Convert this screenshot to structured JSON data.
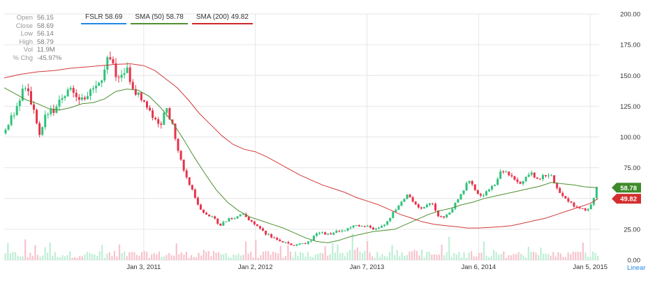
{
  "ohlc_panel": {
    "rows": [
      {
        "label": "Open",
        "value": "56.15"
      },
      {
        "label": "Close",
        "value": "58.69"
      },
      {
        "label": "Low",
        "value": "56.14"
      },
      {
        "label": "High",
        "value": "58.79"
      },
      {
        "label": "Vol",
        "value": "11.9M"
      },
      {
        "label": "% Chg",
        "value": "-45.97%"
      }
    ]
  },
  "legend": [
    {
      "text": "FSLR 58.69",
      "color": "#1e88e5"
    },
    {
      "text": "SMA (50) 58.78",
      "color": "#4e8f2f"
    },
    {
      "text": "SMA (200) 49.82",
      "color": "#cc2828"
    }
  ],
  "badges": {
    "sma50": {
      "text": "58.78",
      "value": 58.78,
      "color": "#3f8a2a"
    },
    "sma200": {
      "text": "49.82",
      "value": 49.82,
      "color": "#d32f2f"
    }
  },
  "scale_label": "Linear",
  "colors": {
    "up": "#2fc27a",
    "down": "#e8324a",
    "sma50": "#4e8f2f",
    "sma200": "#d23a3a",
    "vol_up": "#bfeed5",
    "vol_down": "#f7c3cd",
    "grid": "#e6e6e6",
    "axis_text": "#333333"
  },
  "chart_data": {
    "type": "candlestick",
    "ticker": "FSLR",
    "y_ticks": [
      "0.00",
      "25.00",
      "50.00",
      "75.00",
      "100.00",
      "125.00",
      "150.00",
      "175.00",
      "200.00"
    ],
    "y_tick_values": [
      0,
      25,
      50,
      75,
      100,
      125,
      150,
      175,
      200
    ],
    "ylim": [
      0,
      200
    ],
    "x_ticks": [
      "Jan 3, 2011",
      "Jan 2, 2012",
      "Jan 7, 2013",
      "Jan 6, 2014",
      "Jan 5, 2015"
    ],
    "x_tick_years": [
      2011,
      2012,
      2013,
      2014,
      2015
    ],
    "x_range": [
      2009.75,
      2015.08
    ],
    "close_path": [
      [
        2009.75,
        103
      ],
      [
        2009.85,
        122
      ],
      [
        2009.93,
        140
      ],
      [
        2010.0,
        128
      ],
      [
        2010.07,
        98
      ],
      [
        2010.12,
        118
      ],
      [
        2010.2,
        122
      ],
      [
        2010.28,
        135
      ],
      [
        2010.35,
        140
      ],
      [
        2010.45,
        130
      ],
      [
        2010.55,
        138
      ],
      [
        2010.62,
        148
      ],
      [
        2010.68,
        165
      ],
      [
        2010.72,
        160
      ],
      [
        2010.78,
        145
      ],
      [
        2010.85,
        155
      ],
      [
        2010.92,
        138
      ],
      [
        2011.0,
        128
      ],
      [
        2011.08,
        117
      ],
      [
        2011.15,
        110
      ],
      [
        2011.2,
        125
      ],
      [
        2011.25,
        112
      ],
      [
        2011.3,
        90
      ],
      [
        2011.36,
        72
      ],
      [
        2011.42,
        60
      ],
      [
        2011.48,
        45
      ],
      [
        2011.55,
        38
      ],
      [
        2011.62,
        35
      ],
      [
        2011.68,
        28
      ],
      [
        2011.75,
        33
      ],
      [
        2011.82,
        34
      ],
      [
        2011.88,
        38
      ],
      [
        2011.95,
        32
      ],
      [
        2012.02,
        28
      ],
      [
        2012.08,
        22
      ],
      [
        2012.14,
        19
      ],
      [
        2012.2,
        16
      ],
      [
        2012.27,
        14
      ],
      [
        2012.33,
        12
      ],
      [
        2012.4,
        13
      ],
      [
        2012.47,
        14
      ],
      [
        2012.53,
        20
      ],
      [
        2012.6,
        22
      ],
      [
        2012.67,
        21
      ],
      [
        2012.73,
        23
      ],
      [
        2012.8,
        24
      ],
      [
        2012.87,
        28
      ],
      [
        2012.93,
        27
      ],
      [
        2013.0,
        29
      ],
      [
        2013.05,
        24
      ],
      [
        2013.1,
        26
      ],
      [
        2013.17,
        30
      ],
      [
        2013.23,
        38
      ],
      [
        2013.3,
        46
      ],
      [
        2013.36,
        52
      ],
      [
        2013.42,
        47
      ],
      [
        2013.47,
        41
      ],
      [
        2013.52,
        44
      ],
      [
        2013.58,
        48
      ],
      [
        2013.63,
        36
      ],
      [
        2013.68,
        34
      ],
      [
        2013.75,
        40
      ],
      [
        2013.82,
        50
      ],
      [
        2013.88,
        60
      ],
      [
        2013.92,
        64
      ],
      [
        2013.97,
        56
      ],
      [
        2014.03,
        52
      ],
      [
        2014.1,
        57
      ],
      [
        2014.15,
        62
      ],
      [
        2014.2,
        72
      ],
      [
        2014.26,
        70
      ],
      [
        2014.32,
        66
      ],
      [
        2014.37,
        62
      ],
      [
        2014.42,
        66
      ],
      [
        2014.48,
        70
      ],
      [
        2014.53,
        64
      ],
      [
        2014.58,
        68
      ],
      [
        2014.64,
        70
      ],
      [
        2014.7,
        60
      ],
      [
        2014.75,
        52
      ],
      [
        2014.8,
        48
      ],
      [
        2014.86,
        44
      ],
      [
        2014.92,
        42
      ],
      [
        2014.96,
        40
      ],
      [
        2015.0,
        44
      ],
      [
        2015.04,
        52
      ],
      [
        2015.07,
        58.69
      ]
    ],
    "series": [
      {
        "name": "SMA (50)",
        "points": [
          [
            2009.75,
            140
          ],
          [
            2009.85,
            135
          ],
          [
            2009.95,
            130
          ],
          [
            2010.05,
            127
          ],
          [
            2010.15,
            123
          ],
          [
            2010.25,
            122
          ],
          [
            2010.35,
            124
          ],
          [
            2010.45,
            127
          ],
          [
            2010.55,
            128
          ],
          [
            2010.65,
            131
          ],
          [
            2010.75,
            137
          ],
          [
            2010.85,
            139
          ],
          [
            2010.95,
            138
          ],
          [
            2011.05,
            133
          ],
          [
            2011.15,
            124
          ],
          [
            2011.25,
            113
          ],
          [
            2011.35,
            99
          ],
          [
            2011.45,
            84
          ],
          [
            2011.55,
            70
          ],
          [
            2011.65,
            57
          ],
          [
            2011.75,
            47
          ],
          [
            2011.85,
            40
          ],
          [
            2011.95,
            35
          ],
          [
            2012.05,
            32
          ],
          [
            2012.15,
            29
          ],
          [
            2012.25,
            26
          ],
          [
            2012.35,
            22
          ],
          [
            2012.45,
            18
          ],
          [
            2012.55,
            15
          ],
          [
            2012.65,
            14
          ],
          [
            2012.75,
            16
          ],
          [
            2012.85,
            19
          ],
          [
            2012.95,
            21
          ],
          [
            2013.05,
            23
          ],
          [
            2013.15,
            24
          ],
          [
            2013.25,
            25
          ],
          [
            2013.35,
            29
          ],
          [
            2013.45,
            33
          ],
          [
            2013.55,
            37
          ],
          [
            2013.65,
            40
          ],
          [
            2013.75,
            42
          ],
          [
            2013.85,
            45
          ],
          [
            2013.95,
            47
          ],
          [
            2014.05,
            50
          ],
          [
            2014.15,
            52
          ],
          [
            2014.25,
            54
          ],
          [
            2014.35,
            56
          ],
          [
            2014.45,
            58
          ],
          [
            2014.55,
            60
          ],
          [
            2014.65,
            63
          ],
          [
            2014.75,
            62
          ],
          [
            2014.85,
            61
          ],
          [
            2014.95,
            59.5
          ],
          [
            2015.07,
            58.78
          ]
        ]
      },
      {
        "name": "SMA (200)",
        "points": [
          [
            2009.75,
            148
          ],
          [
            2009.9,
            151
          ],
          [
            2010.05,
            153
          ],
          [
            2010.2,
            154
          ],
          [
            2010.35,
            156
          ],
          [
            2010.5,
            157
          ],
          [
            2010.62,
            158
          ],
          [
            2010.75,
            159
          ],
          [
            2010.88,
            159.5
          ],
          [
            2011.0,
            158
          ],
          [
            2011.1,
            154
          ],
          [
            2011.2,
            147
          ],
          [
            2011.3,
            140
          ],
          [
            2011.4,
            130
          ],
          [
            2011.5,
            119
          ],
          [
            2011.6,
            110
          ],
          [
            2011.7,
            101
          ],
          [
            2011.8,
            94
          ],
          [
            2011.9,
            90
          ],
          [
            2012.0,
            88
          ],
          [
            2012.1,
            84
          ],
          [
            2012.2,
            79
          ],
          [
            2012.3,
            74
          ],
          [
            2012.4,
            69
          ],
          [
            2012.5,
            65
          ],
          [
            2012.6,
            61
          ],
          [
            2012.7,
            58
          ],
          [
            2012.8,
            55
          ],
          [
            2012.9,
            51
          ],
          [
            2013.0,
            48
          ],
          [
            2013.1,
            45
          ],
          [
            2013.2,
            41
          ],
          [
            2013.3,
            37
          ],
          [
            2013.4,
            34
          ],
          [
            2013.5,
            31
          ],
          [
            2013.6,
            29
          ],
          [
            2013.7,
            28
          ],
          [
            2013.8,
            27
          ],
          [
            2013.9,
            26
          ],
          [
            2014.0,
            26
          ],
          [
            2014.1,
            26.5
          ],
          [
            2014.2,
            27
          ],
          [
            2014.3,
            28
          ],
          [
            2014.4,
            30
          ],
          [
            2014.5,
            32
          ],
          [
            2014.6,
            34
          ],
          [
            2014.7,
            37
          ],
          [
            2014.8,
            40
          ],
          [
            2014.9,
            43
          ],
          [
            2015.0,
            46
          ],
          [
            2015.07,
            49.82
          ]
        ]
      }
    ]
  }
}
